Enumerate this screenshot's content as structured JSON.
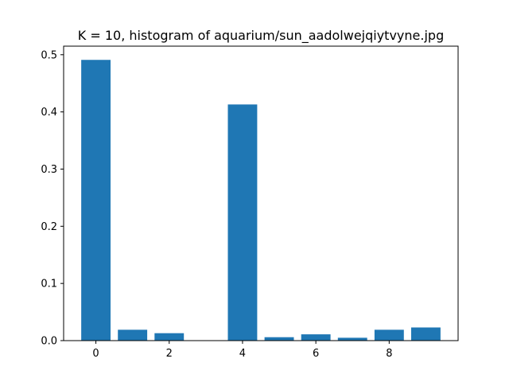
{
  "chart_data": {
    "type": "bar",
    "title": "K = 10, histogram of aquarium/sun_aadolwejqiytvyne.jpg",
    "xlabel": "",
    "ylabel": "",
    "categories": [
      0,
      1,
      2,
      3,
      4,
      5,
      6,
      7,
      8,
      9
    ],
    "values": [
      0.491,
      0.019,
      0.013,
      0.0,
      0.413,
      0.006,
      0.011,
      0.005,
      0.019,
      0.023
    ],
    "xlim": [
      -0.88,
      9.88
    ],
    "ylim": [
      0,
      0.515
    ],
    "xticks": [
      0,
      2,
      4,
      6,
      8
    ],
    "yticks": [
      0.0,
      0.1,
      0.2,
      0.3,
      0.4,
      0.5
    ],
    "ytick_labels": [
      "0.0",
      "0.1",
      "0.2",
      "0.3",
      "0.4",
      "0.5"
    ],
    "bar_color": "#1f77b4",
    "grid": false,
    "legend": "none"
  }
}
